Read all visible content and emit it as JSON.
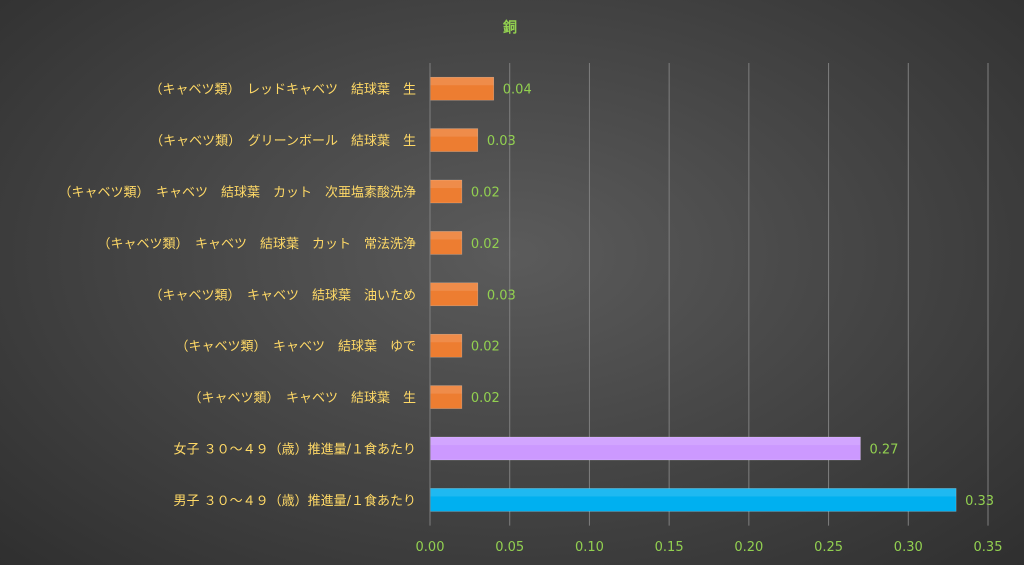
{
  "chart_data": {
    "type": "bar",
    "orientation": "horizontal",
    "title": "銅",
    "xlabel": "",
    "ylabel": "",
    "xlim": [
      0,
      0.35
    ],
    "xticks": [
      "0.00",
      "0.05",
      "0.10",
      "0.15",
      "0.20",
      "0.25",
      "0.30",
      "0.35"
    ],
    "grid": true,
    "legend": "none",
    "categories": [
      "（キャベツ類）　レッドキャベツ　結球葉　生",
      "（キャベツ類）　グリーンボール　結球葉　生",
      "（キャベツ類）　キャベツ　結球葉　カット　次亜塩素酸洗浄",
      "（キャベツ類）　キャベツ　結球葉　カット　常法洗浄",
      "（キャベツ類）　キャベツ　結球葉　油いため",
      "（キャベツ類）　キャベツ　結球葉　ゆで",
      "（キャベツ類）　キャベツ　結球葉　生",
      "女子 ３０～４９（歳）推進量/１食あたり",
      "男子 ３０～４９（歳）推進量/１食あたり"
    ],
    "values": [
      0.04,
      0.03,
      0.02,
      0.02,
      0.03,
      0.02,
      0.02,
      0.27,
      0.33
    ],
    "value_labels": [
      "0.04",
      "0.03",
      "0.02",
      "0.02",
      "0.03",
      "0.02",
      "0.02",
      "0.27",
      "0.33"
    ],
    "bar_colors": [
      "#ed7d31",
      "#ed7d31",
      "#ed7d31",
      "#ed7d31",
      "#ed7d31",
      "#ed7d31",
      "#ed7d31",
      "#cc99ff",
      "#00b0f0"
    ],
    "colors": {
      "title": "#92d050",
      "category_labels": "#ffd966",
      "tick_labels": "#92d050",
      "data_labels": "#92d050",
      "gridlines": "#7f7f7f"
    }
  }
}
